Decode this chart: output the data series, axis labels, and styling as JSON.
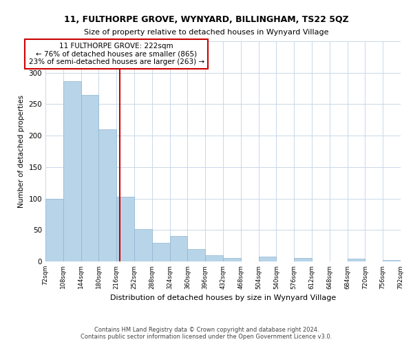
{
  "title": "11, FULTHORPE GROVE, WYNYARD, BILLINGHAM, TS22 5QZ",
  "subtitle": "Size of property relative to detached houses in Wynyard Village",
  "xlabel": "Distribution of detached houses by size in Wynyard Village",
  "ylabel": "Number of detached properties",
  "bar_color": "#b8d4e8",
  "bar_edge_color": "#8eb4d0",
  "bins": [
    72,
    108,
    144,
    180,
    216,
    252,
    288,
    324,
    360,
    396,
    432,
    468,
    504,
    540,
    576,
    612,
    648,
    684,
    720,
    756,
    792
  ],
  "counts": [
    100,
    287,
    265,
    210,
    103,
    51,
    30,
    41,
    20,
    10,
    6,
    0,
    8,
    0,
    6,
    0,
    0,
    4,
    0,
    2
  ],
  "property_line_x": 222,
  "property_line_color": "#cc0000",
  "annotation_title": "11 FULTHORPE GROVE: 222sqm",
  "annotation_line1": "← 76% of detached houses are smaller (865)",
  "annotation_line2": "23% of semi-detached houses are larger (263) →",
  "annotation_box_color": "#ffffff",
  "annotation_box_edge": "#cc0000",
  "ylim": [
    0,
    350
  ],
  "yticks": [
    0,
    50,
    100,
    150,
    200,
    250,
    300,
    350
  ],
  "tick_labels": [
    "72sqm",
    "108sqm",
    "144sqm",
    "180sqm",
    "216sqm",
    "252sqm",
    "288sqm",
    "324sqm",
    "360sqm",
    "396sqm",
    "432sqm",
    "468sqm",
    "504sqm",
    "540sqm",
    "576sqm",
    "612sqm",
    "648sqm",
    "684sqm",
    "720sqm",
    "756sqm",
    "792sqm"
  ],
  "footer_line1": "Contains HM Land Registry data © Crown copyright and database right 2024.",
  "footer_line2": "Contains public sector information licensed under the Open Government Licence v3.0.",
  "bg_color": "#ffffff",
  "grid_color": "#c8d8e8"
}
